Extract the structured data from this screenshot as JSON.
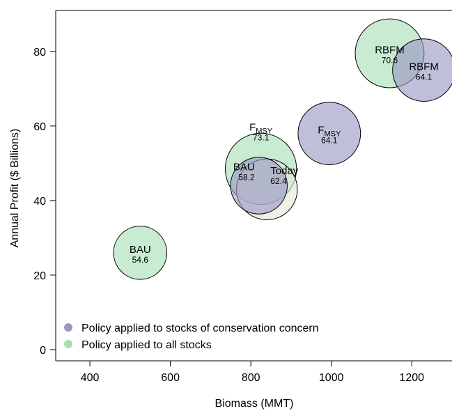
{
  "chart_data": {
    "type": "scatter",
    "subtype": "bubble",
    "title": "",
    "xlabel": "Biomass (MMT)",
    "ylabel": "Annual Profit ($ Billions)",
    "xlim": [
      315,
      1300
    ],
    "ylim": [
      -3,
      91
    ],
    "xticks": [
      400,
      600,
      800,
      1000,
      1200
    ],
    "yticks": [
      0,
      20,
      40,
      60,
      80
    ],
    "grid": false,
    "legend_position": "bottom-left",
    "colors": {
      "conservation_concern": "#9a97c4",
      "all_stocks": "#a6dfb4",
      "today": "#e7e6d9",
      "outline": "#000000"
    },
    "series": [
      {
        "name": "Policy applied to stocks of conservation concern",
        "color": "#9a97c4",
        "points": [
          {
            "label": "RBFM",
            "value_label": "64.1",
            "x": 1230,
            "y": 75,
            "size": 64.1
          },
          {
            "label": "F",
            "label_sub": "MSY",
            "value_label": "64.1",
            "x": 995,
            "y": 58,
            "size": 64.1
          },
          {
            "label": "BAU",
            "value_label": "58.2",
            "x": 820,
            "y": 44,
            "size": 58.2
          }
        ]
      },
      {
        "name": "Policy applied to all stocks",
        "color": "#a6dfb4",
        "points": [
          {
            "label": "RBFM",
            "value_label": "70.6",
            "x": 1145,
            "y": 79.5,
            "size": 70.6
          },
          {
            "label": "F",
            "label_sub": "MSY",
            "value_label": "73.1",
            "x": 825,
            "y": 48.5,
            "size": 73.1
          },
          {
            "label": "BAU",
            "value_label": "54.6",
            "x": 525,
            "y": 26,
            "size": 54.6
          }
        ]
      },
      {
        "points": [
          {
            "label": "Today",
            "value_label": "62.4",
            "x": 840,
            "y": 43,
            "size": 62.4
          }
        ]
      }
    ]
  }
}
